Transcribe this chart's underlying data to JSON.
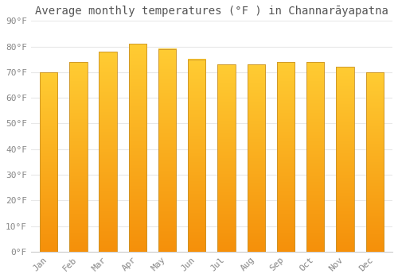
{
  "months": [
    "Jan",
    "Feb",
    "Mar",
    "Apr",
    "May",
    "Jun",
    "Jul",
    "Aug",
    "Sep",
    "Oct",
    "Nov",
    "Dec"
  ],
  "values": [
    70,
    74,
    78,
    81,
    79,
    75,
    73,
    73,
    74,
    74,
    72,
    70
  ],
  "background_color": "#FFFFFF",
  "title": "Average monthly temperatures (°F ) in Channarāyapatna",
  "ylim": [
    0,
    90
  ],
  "yticks": [
    0,
    10,
    20,
    30,
    40,
    50,
    60,
    70,
    80,
    90
  ],
  "ytick_labels": [
    "0°F",
    "10°F",
    "20°F",
    "30°F",
    "40°F",
    "50°F",
    "60°F",
    "70°F",
    "80°F",
    "90°F"
  ],
  "title_fontsize": 10,
  "tick_fontsize": 8,
  "grid_color": "#E8E8E8",
  "bar_color_top": "#FFCC33",
  "bar_color_bottom": "#F5900A",
  "bar_edge_color": "#C8922A",
  "bar_width": 0.6
}
